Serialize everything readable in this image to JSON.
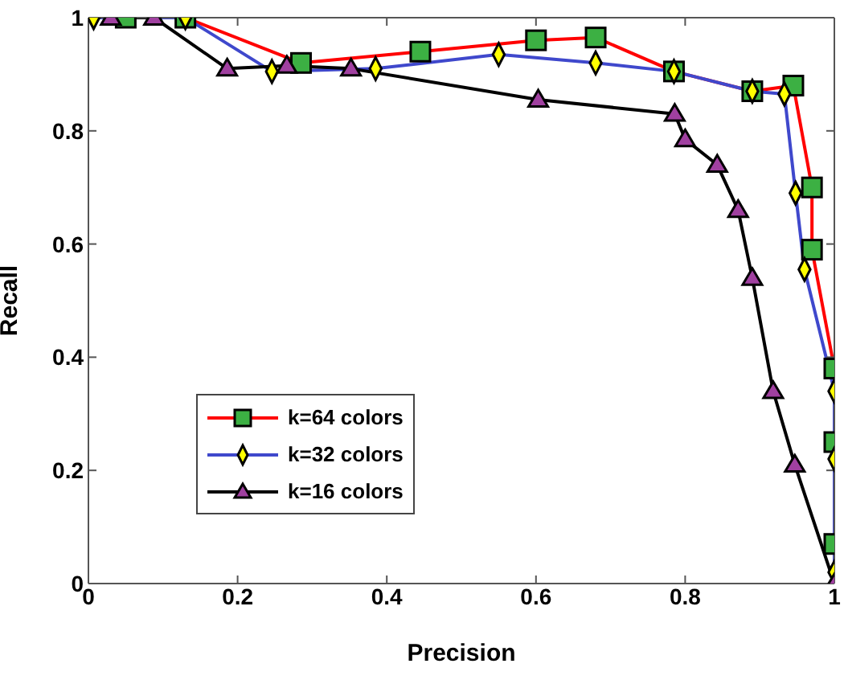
{
  "chart_data": {
    "type": "line",
    "xlabel": "Precision",
    "ylabel": "Recall",
    "xlim": [
      0,
      1
    ],
    "ylim": [
      0,
      1
    ],
    "xticks": [
      0,
      0.2,
      0.4,
      0.6,
      0.8,
      1
    ],
    "yticks": [
      0,
      0.2,
      0.4,
      0.6,
      0.8,
      1
    ],
    "legend": "bottom left",
    "line_style": "solid",
    "series": [
      {
        "name": "k=64 colors",
        "color": "#ff0000",
        "marker": "square",
        "colors": [
          "#3cb043",
          "#3cb043",
          "#3cb043",
          "#3cb043",
          "#3cb043",
          "#3cb043",
          "#3cb043",
          "#3cb043",
          "#3cb043",
          "#3cb043",
          "#3cb043",
          "#3cb043",
          "#3cb043",
          "#3cb043"
        ],
        "x": [
          0.05,
          0.13,
          0.285,
          0.445,
          0.6,
          0.68,
          0.785,
          0.89,
          0.945,
          0.97,
          0.97,
          1,
          1,
          1
        ],
        "values": [
          1,
          1,
          0.92,
          0.94,
          0.96,
          0.965,
          0.905,
          0.87,
          0.88,
          0.7,
          0.59,
          0.38,
          0.25,
          0.07
        ]
      },
      {
        "name": "k=32 colors",
        "color": "#3f48cc",
        "marker": "diamond",
        "colors": [
          "#ffff00",
          "#ffff00",
          "#ffff00",
          "#ffff00",
          "#ffff00",
          "#ffff00",
          "#ffff00",
          "#ffff00",
          "#ffff00",
          "#ffff00",
          "#ffff00",
          "#ffff00",
          "#ffff00",
          "#ffff00"
        ],
        "x": [
          0.007,
          0.13,
          0.246,
          0.385,
          0.55,
          0.68,
          0.785,
          0.89,
          0.933,
          0.948,
          0.96,
          1,
          1,
          1
        ],
        "values": [
          1,
          1,
          0.905,
          0.91,
          0.935,
          0.92,
          0.905,
          0.87,
          0.865,
          0.69,
          0.555,
          0.34,
          0.22,
          0.02
        ]
      },
      {
        "name": "k=16 colors",
        "color": "#000000",
        "marker": "triangle",
        "colors": [
          "#a040a0",
          "#a040a0",
          "#a040a0",
          "#a040a0",
          "#a040a0",
          "#a040a0",
          "#a040a0",
          "#a040a0",
          "#a040a0",
          "#a040a0",
          "#a040a0",
          "#a040a0",
          "#a040a0",
          "#a040a0"
        ],
        "x": [
          0.03,
          0.088,
          0.186,
          0.266,
          0.352,
          0.603,
          0.786,
          0.8,
          0.843,
          0.871,
          0.89,
          0.918,
          0.947,
          1
        ],
        "values": [
          1,
          1,
          0.91,
          0.915,
          0.91,
          0.855,
          0.83,
          0.785,
          0.74,
          0.66,
          0.54,
          0.34,
          0.21,
          0
        ]
      }
    ]
  }
}
